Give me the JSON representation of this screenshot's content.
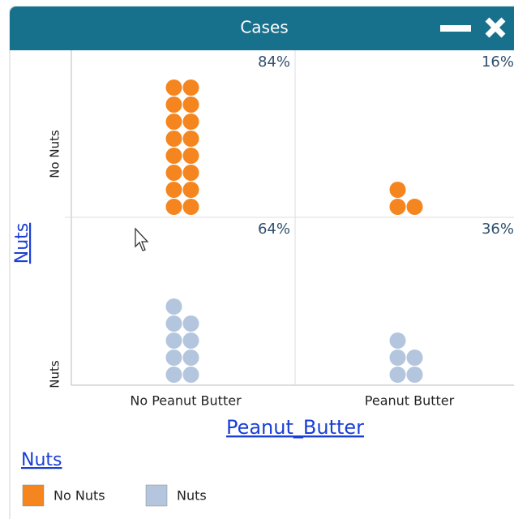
{
  "window": {
    "title": "Cases"
  },
  "plot": {
    "y_axis": {
      "label": "Nuts",
      "categories": [
        "No Nuts",
        "Nuts"
      ]
    },
    "x_axis": {
      "label": "Peanut_Butter",
      "categories": [
        "No Peanut Butter",
        "Peanut Butter"
      ]
    },
    "cells": [
      [
        {
          "percent": "84%",
          "count": 16
        },
        {
          "percent": "16%",
          "count": 3
        }
      ],
      [
        {
          "percent": "64%",
          "count": 9
        },
        {
          "percent": "36%",
          "count": 5
        }
      ]
    ]
  },
  "legend": {
    "title": "Nuts",
    "items": [
      {
        "label": "No Nuts",
        "color": "#f5861f"
      },
      {
        "label": "Nuts",
        "color": "#b3c6de"
      }
    ]
  }
}
